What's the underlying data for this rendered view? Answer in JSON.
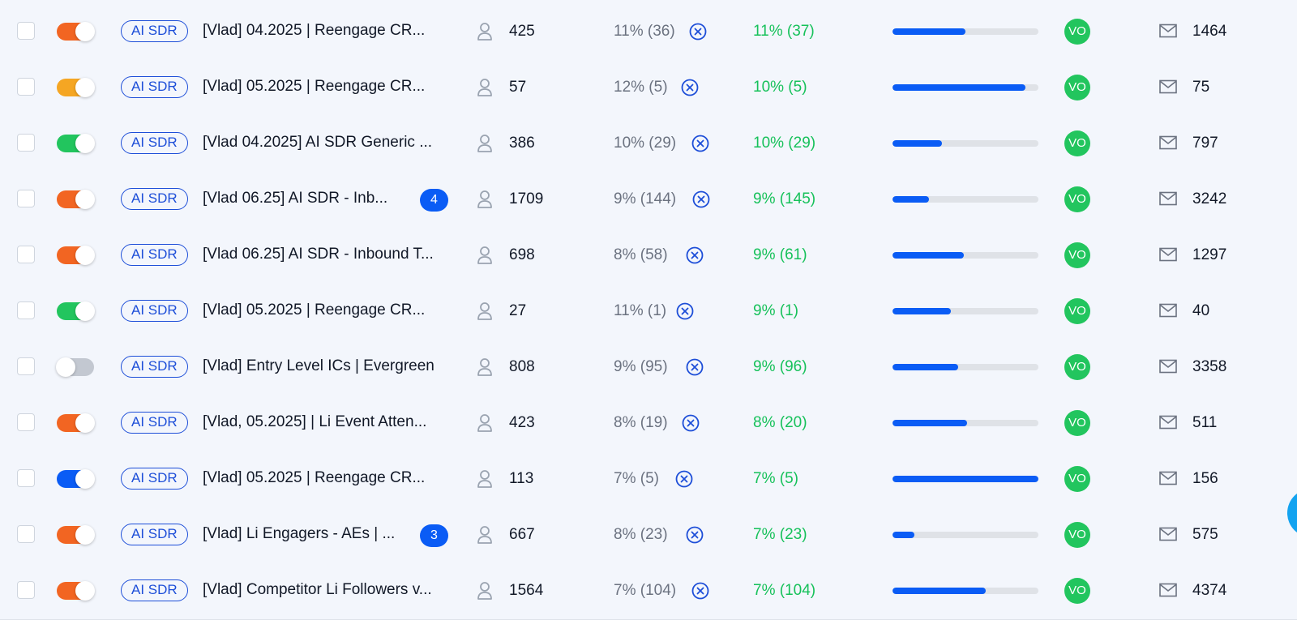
{
  "colors": {
    "toggle_orange": "#f26522",
    "toggle_amber": "#f5a623",
    "toggle_green": "#22c55e",
    "toggle_blue": "#0a5cf5",
    "toggle_grey": "#c3c8d1",
    "positive_green": "#16c15a",
    "accent_blue": "#0a5cf5"
  },
  "icons": {
    "leads": "person-icon",
    "bounce": "close-circle-icon",
    "sent": "mail-icon"
  },
  "campaigns": [
    {
      "toggle_color": "#f26522",
      "toggle_on": true,
      "tag": "AI SDR",
      "name": "[Vlad] 04.2025 | Reengage CR...",
      "badge": "",
      "leads": "425",
      "open_rate": "11% (36)",
      "reply_rate": "11% (37)",
      "progress": 0.5,
      "owner": "VO",
      "sent": "1464"
    },
    {
      "toggle_color": "#f5a623",
      "toggle_on": true,
      "tag": "AI SDR",
      "name": "[Vlad] 05.2025 | Reengage CR...",
      "badge": "",
      "leads": "57",
      "open_rate": "12% (5)",
      "reply_rate": "10% (5)",
      "progress": 0.91,
      "owner": "VO",
      "sent": "75"
    },
    {
      "toggle_color": "#22c55e",
      "toggle_on": true,
      "tag": "AI SDR",
      "name": "[Vlad 04.2025] AI SDR Generic ...",
      "badge": "",
      "leads": "386",
      "open_rate": "10% (29)",
      "reply_rate": "10% (29)",
      "progress": 0.34,
      "owner": "VO",
      "sent": "797"
    },
    {
      "toggle_color": "#f26522",
      "toggle_on": true,
      "tag": "AI SDR",
      "name": "[Vlad 06.25] AI SDR - Inb...",
      "badge": "4",
      "leads": "1709",
      "open_rate": "9% (144)",
      "reply_rate": "9% (145)",
      "progress": 0.25,
      "owner": "VO",
      "sent": "3242"
    },
    {
      "toggle_color": "#f26522",
      "toggle_on": true,
      "tag": "AI SDR",
      "name": "[Vlad 06.25] AI SDR - Inbound T...",
      "badge": "",
      "leads": "698",
      "open_rate": "8% (58)",
      "reply_rate": "9% (61)",
      "progress": 0.49,
      "owner": "VO",
      "sent": "1297"
    },
    {
      "toggle_color": "#22c55e",
      "toggle_on": true,
      "tag": "AI SDR",
      "name": "[Vlad] 05.2025 | Reengage CR...",
      "badge": "",
      "leads": "27",
      "open_rate": "11% (1)",
      "reply_rate": "9% (1)",
      "progress": 0.4,
      "owner": "VO",
      "sent": "40"
    },
    {
      "toggle_color": "#c3c8d1",
      "toggle_on": false,
      "tag": "AI SDR",
      "name": "[Vlad] Entry Level ICs | Evergreen",
      "badge": "",
      "leads": "808",
      "open_rate": "9% (95)",
      "reply_rate": "9% (96)",
      "progress": 0.45,
      "owner": "VO",
      "sent": "3358"
    },
    {
      "toggle_color": "#f26522",
      "toggle_on": true,
      "tag": "AI SDR",
      "name": "[Vlad, 05.2025] | Li Event Atten...",
      "badge": "",
      "leads": "423",
      "open_rate": "8% (19)",
      "reply_rate": "8% (20)",
      "progress": 0.51,
      "owner": "VO",
      "sent": "511"
    },
    {
      "toggle_color": "#0a5cf5",
      "toggle_on": true,
      "tag": "AI SDR",
      "name": "[Vlad] 05.2025 | Reengage CR...",
      "badge": "",
      "leads": "113",
      "open_rate": "7% (5)",
      "reply_rate": "7% (5)",
      "progress": 1.0,
      "owner": "VO",
      "sent": "156"
    },
    {
      "toggle_color": "#f26522",
      "toggle_on": true,
      "tag": "AI SDR",
      "name": "[Vlad] Li Engagers - AEs | ...",
      "badge": "3",
      "leads": "667",
      "open_rate": "8% (23)",
      "reply_rate": "7% (23)",
      "progress": 0.15,
      "owner": "VO",
      "sent": "575"
    },
    {
      "toggle_color": "#f26522",
      "toggle_on": true,
      "tag": "AI SDR",
      "name": "[Vlad] Competitor Li Followers v...",
      "badge": "",
      "leads": "1564",
      "open_rate": "7% (104)",
      "reply_rate": "7% (104)",
      "progress": 0.64,
      "owner": "VO",
      "sent": "4374"
    }
  ]
}
